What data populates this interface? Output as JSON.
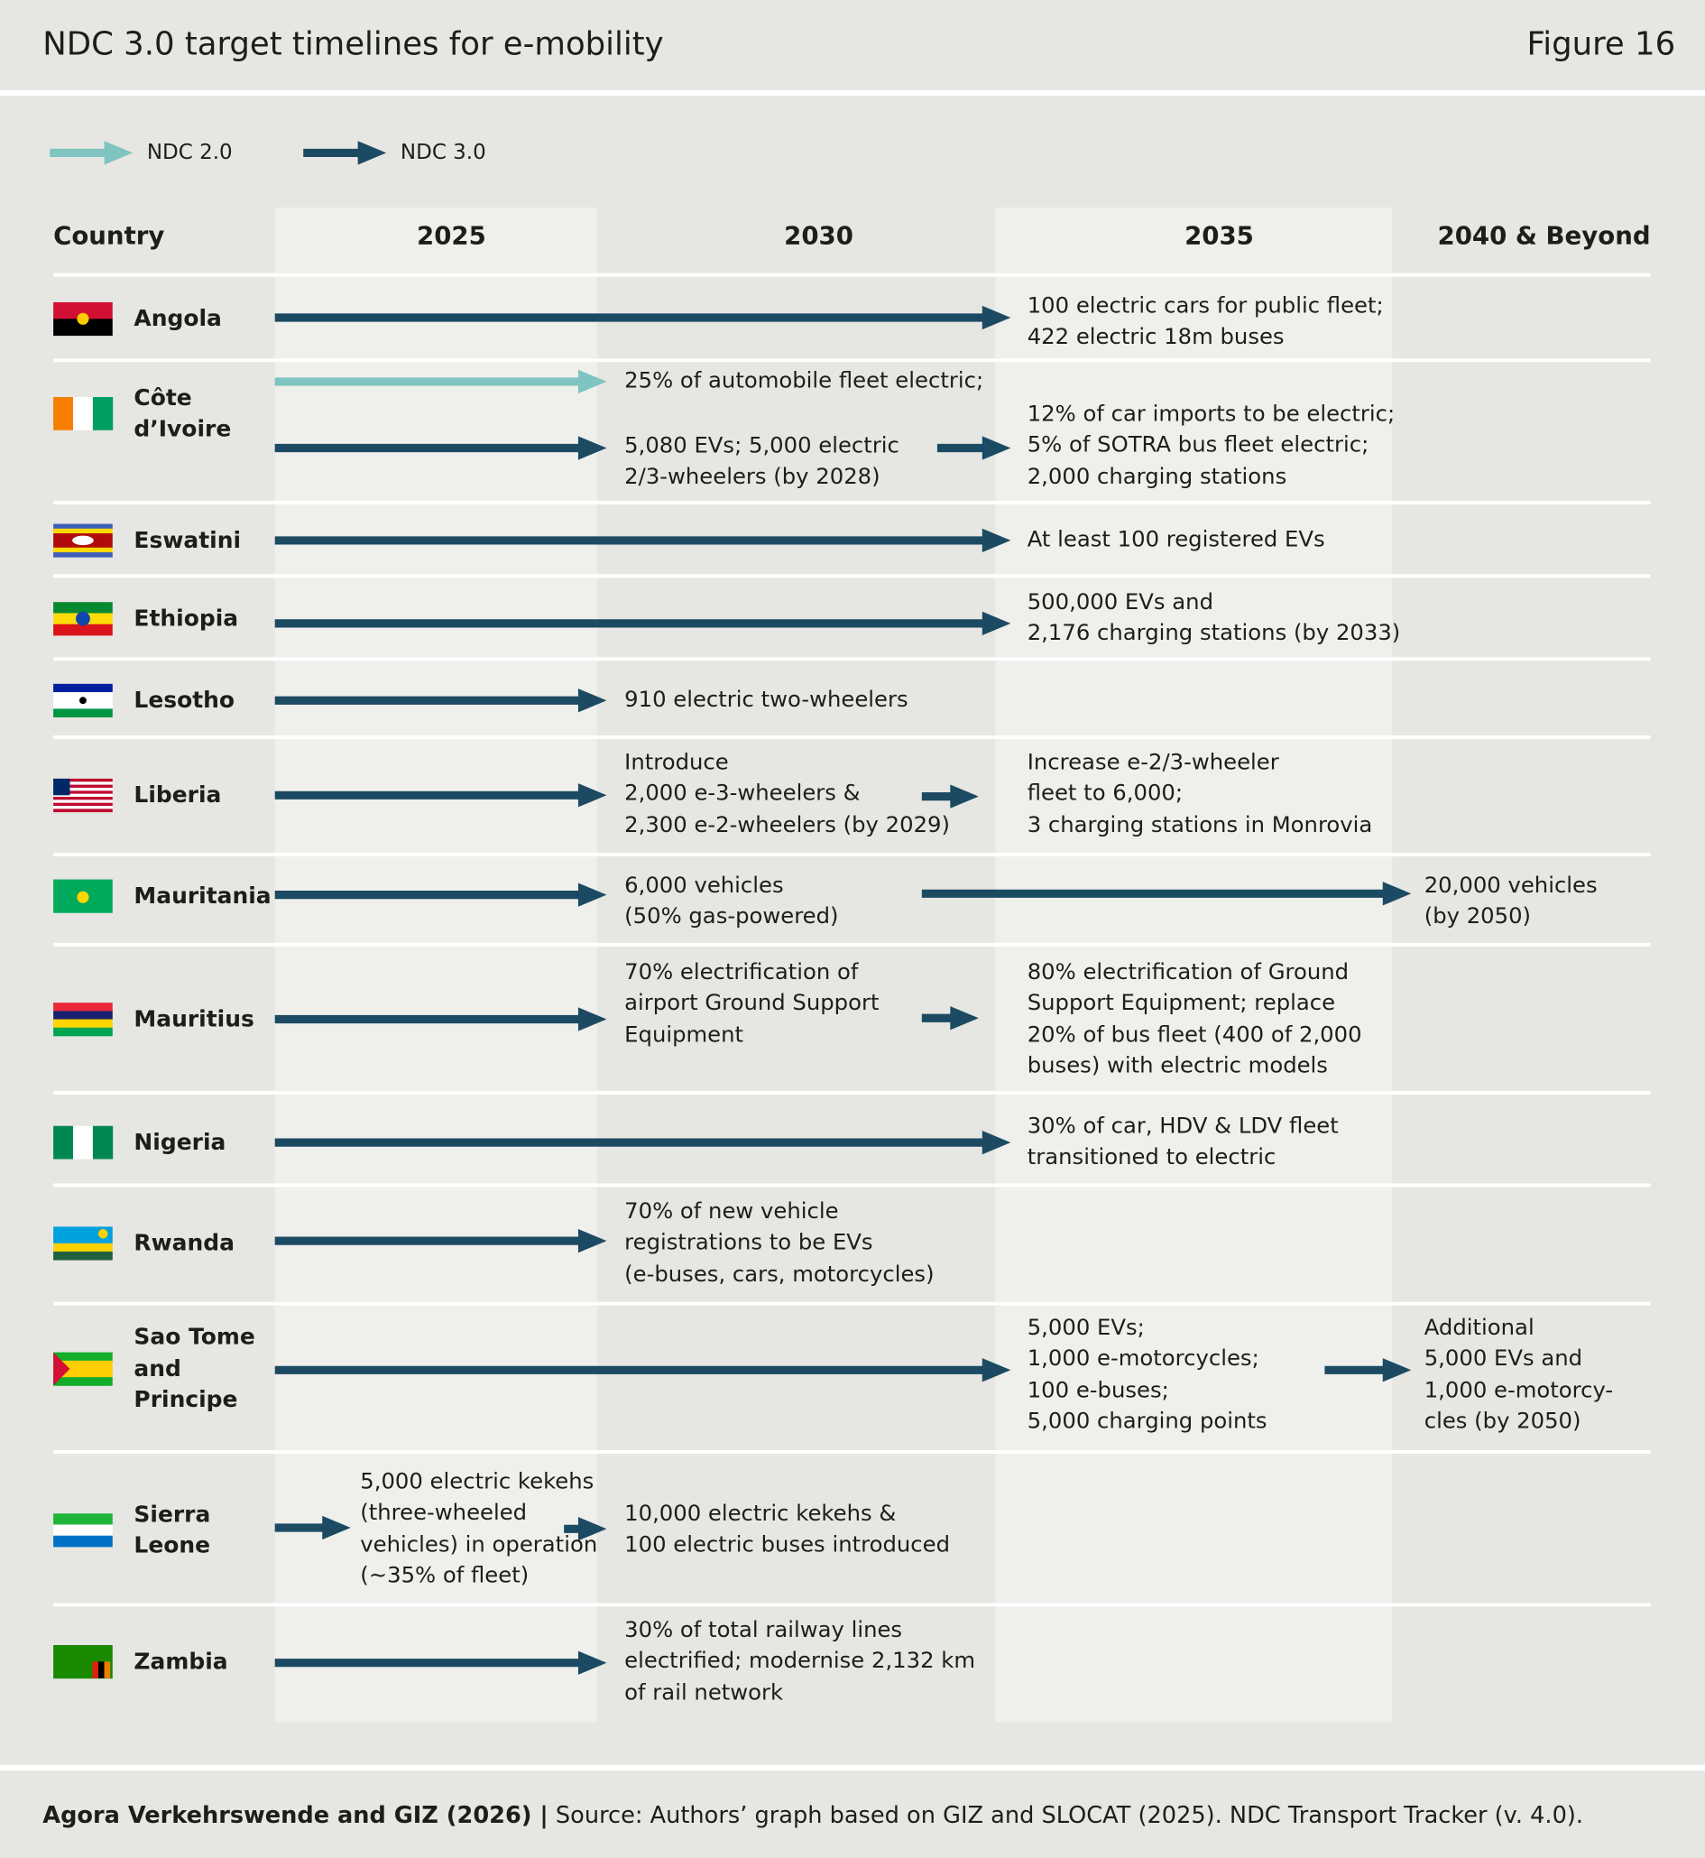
{
  "header": {
    "title": "NDC 3.0 target timelines for e-mobility",
    "figure": "Figure 16"
  },
  "legend": [
    {
      "label": "NDC 2.0",
      "color": "#7fc4c0"
    },
    {
      "label": "NDC 3.0",
      "color": "#1c4a63"
    }
  ],
  "columns": [
    "Country",
    "2025",
    "2030",
    "2035",
    "2040 & Beyond"
  ],
  "rows": [
    {
      "country": "Angola",
      "targets": [
        "100 electric cars for public fleet;\n422 electric 18m buses"
      ]
    },
    {
      "country": "Côte\nd’Ivoire",
      "targets": [
        "25% of automobile fleet electric;",
        "5,080 EVs; 5,000 electric\n2/3-wheelers (by 2028)",
        "12% of car imports to be electric;\n5% of SOTRA bus fleet electric;\n2,000 charging stations"
      ]
    },
    {
      "country": "Eswatini",
      "targets": [
        "At least 100 registered EVs"
      ]
    },
    {
      "country": "Ethiopia",
      "targets": [
        "500,000 EVs and\n2,176 charging stations (by 2033)"
      ]
    },
    {
      "country": "Lesotho",
      "targets": [
        "910 electric two-wheelers"
      ]
    },
    {
      "country": "Liberia",
      "targets": [
        "Introduce\n2,000 e-3-wheelers &\n2,300 e-2-wheelers (by 2029)",
        "Increase e-2/3-wheeler\nfleet to 6,000;\n3 charging stations in Monrovia"
      ]
    },
    {
      "country": "Mauritania",
      "targets": [
        "6,000 vehicles\n(50% gas-powered)",
        "20,000 vehicles\n(by 2050)"
      ]
    },
    {
      "country": "Mauritius",
      "targets": [
        "70% electrification of\nairport Ground Support\nEquipment",
        "80% electrification of Ground\nSupport Equipment; replace\n20% of bus fleet (400 of 2,000\nbuses) with electric models"
      ]
    },
    {
      "country": "Nigeria",
      "targets": [
        "30% of car, HDV & LDV fleet\ntransitioned to electric"
      ]
    },
    {
      "country": "Rwanda",
      "targets": [
        "70% of new vehicle\nregistrations to be EVs\n(e-buses, cars, motorcycles)"
      ]
    },
    {
      "country": "Sao Tome\nand\nPrincipe",
      "targets": [
        "5,000 EVs;\n1,000 e-motorcycles;\n100 e-buses;\n5,000 charging points",
        "Additional\n5,000 EVs and\n1,000 e-motorcy-\ncles (by 2050)"
      ]
    },
    {
      "country": "Sierra\nLeone",
      "targets": [
        "5,000 electric kekehs\n(three-wheeled\nvehicles) in operation\n(~35% of fleet)",
        "10,000 electric kekehs &\n100 electric buses introduced"
      ]
    },
    {
      "country": "Zambia",
      "targets": [
        "30% of total railway lines\nelectrified; modernise 2,132 km\nof rail network"
      ]
    }
  ],
  "footer": {
    "credit": "Agora Verkehrswende and GIZ (2026) |",
    "source": "Source: Authors’ graph based on GIZ and SLOCAT (2025). NDC Transport Tracker (v. 4.0)."
  }
}
